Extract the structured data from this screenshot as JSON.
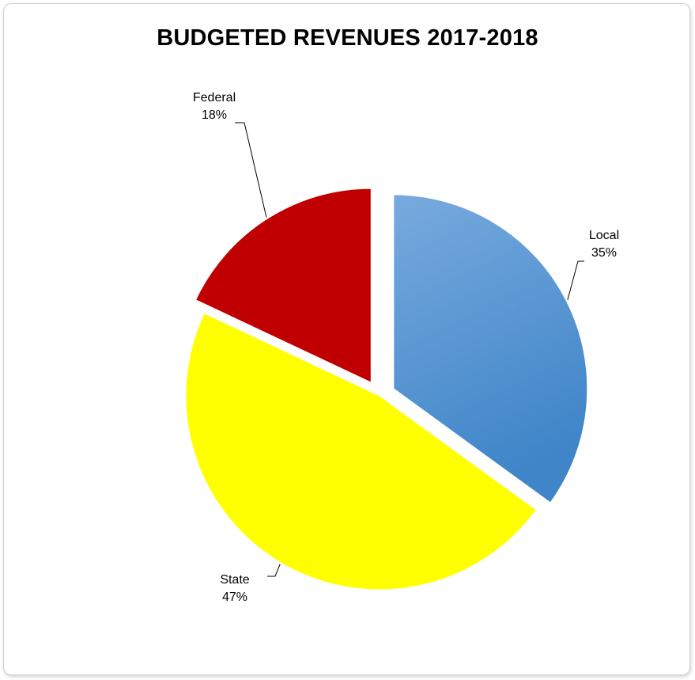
{
  "chart_data": {
    "type": "pie",
    "title": "BUDGETED REVENUES 2017-2018",
    "slices": [
      {
        "label": "Local",
        "value": 35,
        "value_label": "35%",
        "color": "#5b9bd5",
        "exploded": true
      },
      {
        "label": "State",
        "value": 47,
        "value_label": "47%",
        "color": "#ffff00",
        "exploded": false
      },
      {
        "label": "Federal",
        "value": 18,
        "value_label": "18%",
        "color": "#c00000",
        "exploded": true
      }
    ],
    "start_angle": "12 o'clock",
    "direction": "clockwise",
    "legend": "none",
    "data_labels": "category name and percentage, outside with leader lines"
  }
}
